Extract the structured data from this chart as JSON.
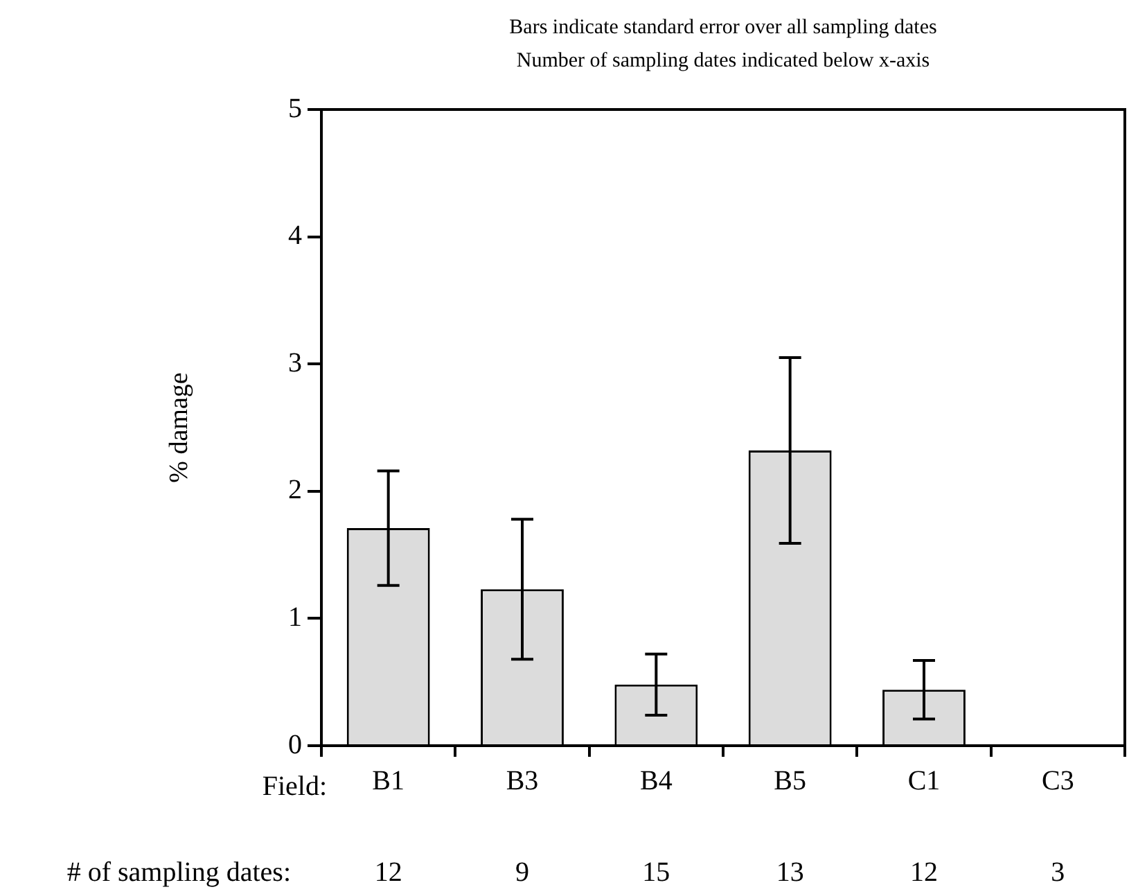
{
  "chart_data": {
    "type": "bar",
    "title": "Bars indicate standard error over all sampling dates",
    "subtitle": "Number of sampling dates indicated below x-axis",
    "xlabel": "Field:",
    "ylabel": "% damage",
    "categories": [
      "B1",
      "B3",
      "B4",
      "B5",
      "C1",
      "C3"
    ],
    "values": [
      1.71,
      1.23,
      0.48,
      2.32,
      0.44,
      0
    ],
    "errors": [
      0.45,
      0.55,
      0.24,
      0.73,
      0.23,
      null
    ],
    "color": "#dcdcdc",
    "ylim": [
      0,
      5
    ],
    "yticks": [
      0,
      1,
      2,
      3,
      4,
      5
    ],
    "grid": false,
    "annotations": [
      "# of sampling dates:",
      "12",
      "9",
      "15",
      "13",
      "12",
      "3"
    ]
  }
}
